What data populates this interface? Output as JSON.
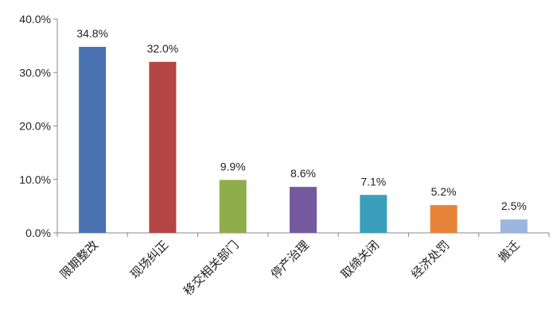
{
  "chart_data": {
    "type": "bar",
    "categories": [
      "限期整改",
      "现场纠正",
      "移交相关部门",
      "停产治理",
      "取缔关闭",
      "经济处罚",
      "搬迁"
    ],
    "values": [
      34.8,
      32.0,
      9.9,
      8.6,
      7.1,
      5.2,
      2.5
    ],
    "value_labels": [
      "34.8%",
      "32.0%",
      "9.9%",
      "8.6%",
      "7.1%",
      "5.2%",
      "2.5%"
    ],
    "colors": [
      "#4a72b0",
      "#b54545",
      "#8fae4b",
      "#75599f",
      "#3a9fbd",
      "#e8843a",
      "#9db6dd"
    ],
    "ylim": [
      0,
      40
    ],
    "yticks": [
      {
        "value": 0,
        "label": "0.0%"
      },
      {
        "value": 10,
        "label": "10.0%"
      },
      {
        "value": 20,
        "label": "20.0%"
      },
      {
        "value": 30,
        "label": "30.0%"
      },
      {
        "value": 40,
        "label": "40.0%"
      }
    ],
    "grid": false
  }
}
